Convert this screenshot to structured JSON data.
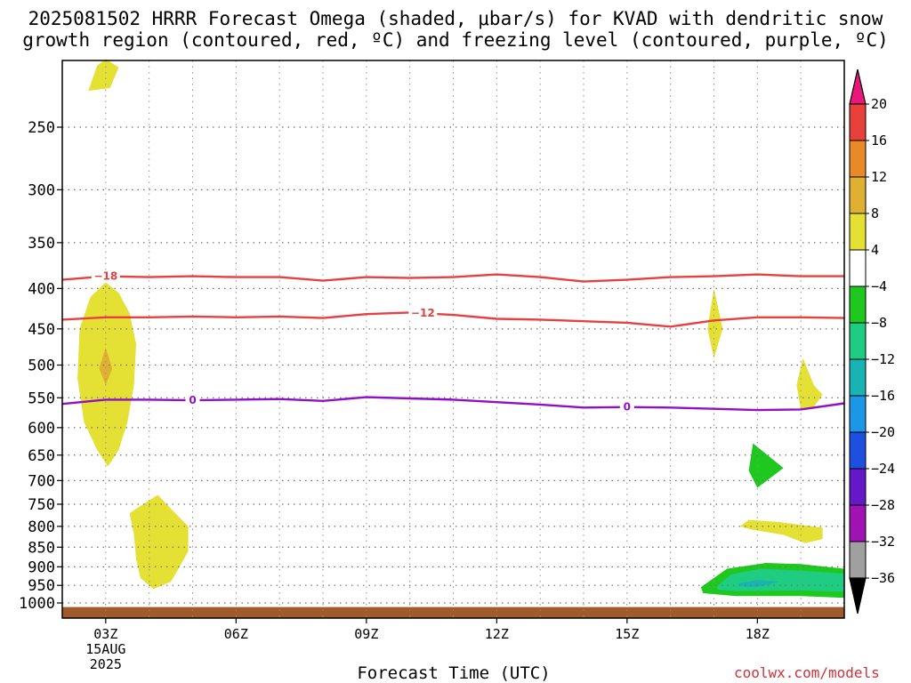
{
  "title": {
    "line1": "2025081502 HRRR Forecast Omega (shaded, μbar/s) for KVAD with dendritic snow",
    "line2": "growth region (contoured, red, ºC) and freezing level (contoured, purple, ºC)"
  },
  "watermark": "coolwx.com/models",
  "chart_data": {
    "type": "heatmap",
    "xlabel": "Forecast Time (UTC)",
    "ylabel": "",
    "y_axis": "pressure (hPa), inverted",
    "y_ticks": [
      250,
      300,
      350,
      400,
      450,
      500,
      550,
      600,
      650,
      700,
      750,
      800,
      850,
      900,
      950,
      1000
    ],
    "x_ticks": [
      {
        "hour": 3,
        "label": "03Z",
        "date_line1": "15AUG",
        "date_line2": "2025"
      },
      {
        "hour": 6,
        "label": "06Z"
      },
      {
        "hour": 9,
        "label": "09Z"
      },
      {
        "hour": 12,
        "label": "12Z"
      },
      {
        "hour": 15,
        "label": "15Z"
      },
      {
        "hour": 18,
        "label": "18Z"
      }
    ],
    "x_range_hours": [
      2,
      20
    ],
    "grid": true,
    "colorbar": {
      "labels": [
        "20",
        "16",
        "12",
        "8",
        "4",
        "−4",
        "−8",
        "−12",
        "−16",
        "−20",
        "−24",
        "−28",
        "−32",
        "−36"
      ],
      "colors": [
        "#e8187a",
        "#e8403a",
        "#e88a28",
        "#e0b032",
        "#e4e034",
        "#ffffff",
        "#1ec81e",
        "#1ecc82",
        "#18b4b4",
        "#1e96e8",
        "#1e50e0",
        "#6418c8",
        "#a012b4",
        "#a0a0a0",
        "#000000"
      ]
    },
    "contours": [
      {
        "kind": "dendritic",
        "label": "−18",
        "color": "#e84040",
        "points": [
          [
            2,
            390
          ],
          [
            3,
            386
          ],
          [
            4,
            387
          ],
          [
            5,
            386
          ],
          [
            6,
            387
          ],
          [
            7,
            387
          ],
          [
            8,
            391
          ],
          [
            9,
            387
          ],
          [
            10,
            388
          ],
          [
            11,
            387
          ],
          [
            12,
            384
          ],
          [
            13,
            387
          ],
          [
            14,
            392
          ],
          [
            15,
            390
          ],
          [
            16,
            387
          ],
          [
            17,
            386
          ],
          [
            18,
            384
          ],
          [
            19,
            386
          ],
          [
            20,
            386
          ]
        ],
        "label_at_hour": 3.0
      },
      {
        "kind": "dendritic",
        "label": "−12",
        "color": "#e84040",
        "points": [
          [
            2,
            438
          ],
          [
            3,
            435
          ],
          [
            4,
            435
          ],
          [
            5,
            434
          ],
          [
            6,
            435
          ],
          [
            7,
            434
          ],
          [
            8,
            436
          ],
          [
            9,
            431
          ],
          [
            10,
            429
          ],
          [
            11,
            432
          ],
          [
            12,
            437
          ],
          [
            13,
            438
          ],
          [
            14,
            440
          ],
          [
            15,
            442
          ],
          [
            16,
            447
          ],
          [
            17,
            439
          ],
          [
            18,
            435
          ],
          [
            19,
            435
          ],
          [
            20,
            436
          ]
        ],
        "label_at_hour": 10.3
      },
      {
        "kind": "freezing_level",
        "label": "0",
        "color": "#9010c8",
        "points": [
          [
            2,
            560
          ],
          [
            3,
            553
          ],
          [
            4,
            553
          ],
          [
            5,
            554
          ],
          [
            6,
            553
          ],
          [
            7,
            552
          ],
          [
            8,
            555
          ],
          [
            9,
            549
          ],
          [
            10,
            551
          ],
          [
            11,
            553
          ],
          [
            12,
            557
          ],
          [
            13,
            561
          ],
          [
            14,
            566
          ],
          [
            15,
            565
          ],
          [
            16,
            566
          ],
          [
            17,
            568
          ],
          [
            18,
            570
          ],
          [
            19,
            569
          ],
          [
            20,
            559
          ]
        ],
        "label_at_hours": [
          5.0,
          15.0
        ]
      }
    ],
    "shaded_regions": [
      {
        "category": "4 to 8",
        "color": "#e4e034",
        "points": [
          [
            2.6,
            225
          ],
          [
            3.1,
            223
          ],
          [
            3.3,
            210
          ],
          [
            3.0,
            205
          ],
          [
            2.8,
            209
          ]
        ]
      },
      {
        "category": "4 to 8",
        "color": "#e4e034",
        "points": [
          [
            3.0,
            393
          ],
          [
            3.3,
            405
          ],
          [
            3.55,
            430
          ],
          [
            3.7,
            470
          ],
          [
            3.65,
            530
          ],
          [
            3.5,
            590
          ],
          [
            3.3,
            640
          ],
          [
            3.05,
            672
          ],
          [
            2.8,
            640
          ],
          [
            2.5,
            590
          ],
          [
            2.35,
            520
          ],
          [
            2.4,
            450
          ],
          [
            2.65,
            410
          ]
        ]
      },
      {
        "category": "8 to 12",
        "color": "#e0b032",
        "points": [
          [
            3.0,
            475
          ],
          [
            3.15,
            505
          ],
          [
            3.0,
            530
          ],
          [
            2.85,
            505
          ]
        ]
      },
      {
        "category": "4 to 8",
        "color": "#e4e034",
        "points": [
          [
            3.7,
            760
          ],
          [
            4.2,
            730
          ],
          [
            4.5,
            760
          ],
          [
            4.9,
            800
          ],
          [
            4.9,
            860
          ],
          [
            4.7,
            900
          ],
          [
            4.5,
            940
          ],
          [
            4.1,
            960
          ],
          [
            3.8,
            930
          ],
          [
            3.7,
            880
          ],
          [
            3.65,
            820
          ],
          [
            3.55,
            770
          ]
        ]
      },
      {
        "category": "4 to 8",
        "color": "#e4e034",
        "points": [
          [
            17.0,
            400
          ],
          [
            17.2,
            450
          ],
          [
            17.0,
            490
          ],
          [
            16.85,
            450
          ]
        ]
      },
      {
        "category": "4 to 8",
        "color": "#e4e034",
        "points": [
          [
            19.05,
            490
          ],
          [
            19.3,
            530
          ],
          [
            19.5,
            545
          ],
          [
            19.3,
            565
          ],
          [
            19.0,
            570
          ],
          [
            18.9,
            530
          ]
        ]
      },
      {
        "category": "4 to 8",
        "color": "#e4e034",
        "points": [
          [
            17.8,
            785
          ],
          [
            18.5,
            790
          ],
          [
            19.5,
            803
          ],
          [
            19.5,
            830
          ],
          [
            19.1,
            840
          ],
          [
            18.6,
            820
          ],
          [
            17.9,
            808
          ],
          [
            17.6,
            800
          ]
        ]
      },
      {
        "category": "−4 to −8",
        "color": "#1ec81e",
        "points": [
          [
            17.9,
            628
          ],
          [
            18.6,
            675
          ],
          [
            18.0,
            715
          ],
          [
            17.8,
            680
          ]
        ]
      },
      {
        "category": "−4 to −8",
        "color": "#1ec81e",
        "points": [
          [
            16.7,
            955
          ],
          [
            17.3,
            905
          ],
          [
            18.2,
            890
          ],
          [
            19.0,
            893
          ],
          [
            20.0,
            905
          ],
          [
            20.0,
            985
          ],
          [
            19.0,
            980
          ],
          [
            17.5,
            980
          ],
          [
            16.75,
            972
          ]
        ]
      },
      {
        "category": "−8 to −12",
        "color": "#1ecc82",
        "points": [
          [
            17.05,
            955
          ],
          [
            17.4,
            920
          ],
          [
            18.1,
            905
          ],
          [
            19.0,
            910
          ],
          [
            20.0,
            918
          ],
          [
            20.0,
            968
          ],
          [
            19.0,
            964
          ],
          [
            17.5,
            966
          ],
          [
            17.1,
            962
          ]
        ]
      },
      {
        "category": "−12 to −16",
        "color": "#18b4b4",
        "points": [
          [
            17.55,
            945
          ],
          [
            18.0,
            935
          ],
          [
            18.5,
            940
          ],
          [
            18.0,
            955
          ],
          [
            17.6,
            953
          ]
        ]
      }
    ],
    "terrain_color": "#a05a2c",
    "surface_pressure": 1012
  }
}
